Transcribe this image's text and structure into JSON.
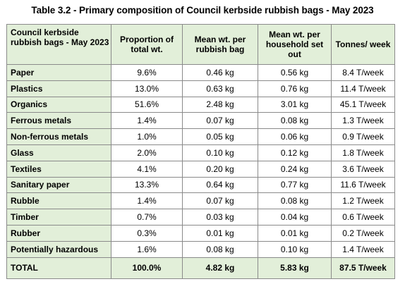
{
  "title": "Table 3.2 - Primary composition of Council kerbside rubbish bags - May 2023",
  "headers": [
    "Council kerbside rubbish bags - May 2023",
    "Proportion of total wt.",
    "Mean wt. per rubbish bag",
    "Mean wt. per household set out",
    "Tonnes/ week"
  ],
  "rows": [
    [
      "Paper",
      "9.6%",
      "0.46 kg",
      "0.56 kg",
      "8.4 T/week"
    ],
    [
      "Plastics",
      "13.0%",
      "0.63 kg",
      "0.76 kg",
      "11.4 T/week"
    ],
    [
      "Organics",
      "51.6%",
      "2.48 kg",
      "3.01 kg",
      "45.1 T/week"
    ],
    [
      "Ferrous metals",
      "1.4%",
      "0.07 kg",
      "0.08 kg",
      "1.3 T/week"
    ],
    [
      "Non-ferrous metals",
      "1.0%",
      "0.05 kg",
      "0.06 kg",
      "0.9 T/week"
    ],
    [
      "Glass",
      "2.0%",
      "0.10 kg",
      "0.12 kg",
      "1.8 T/week"
    ],
    [
      "Textiles",
      "4.1%",
      "0.20 kg",
      "0.24 kg",
      "3.6 T/week"
    ],
    [
      "Sanitary paper",
      "13.3%",
      "0.64 kg",
      "0.77 kg",
      "11.6 T/week"
    ],
    [
      "Rubble",
      "1.4%",
      "0.07 kg",
      "0.08 kg",
      "1.2 T/week"
    ],
    [
      "Timber",
      "0.7%",
      "0.03 kg",
      "0.04 kg",
      "0.6 T/week"
    ],
    [
      "Rubber",
      "0.3%",
      "0.01 kg",
      "0.01 kg",
      "0.2 T/week"
    ],
    [
      "Potentially hazardous",
      "1.6%",
      "0.08 kg",
      "0.10 kg",
      "1.4 T/week"
    ]
  ],
  "total": [
    "TOTAL",
    "100.0%",
    "4.82 kg",
    "5.83 kg",
    "87.5 T/week"
  ],
  "colors": {
    "header_fill": "#e2efd9",
    "border": "#8a8a8a"
  }
}
